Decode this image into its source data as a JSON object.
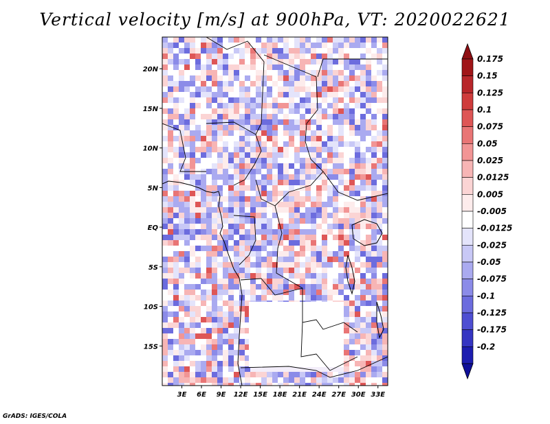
{
  "title": "Vertical velocity [m/s] at 900hPa, VT: 2020022621",
  "credit": "GrADS: IGES/COLA",
  "map": {
    "lon_range": [
      0,
      34.5
    ],
    "lat_range": [
      -20,
      24
    ],
    "lon_ticks": [
      {
        "value": 3,
        "label": "3E"
      },
      {
        "value": 6,
        "label": "6E"
      },
      {
        "value": 9,
        "label": "9E"
      },
      {
        "value": 12,
        "label": "12E"
      },
      {
        "value": 15,
        "label": "15E"
      },
      {
        "value": 18,
        "label": "18E"
      },
      {
        "value": 21,
        "label": "21E"
      },
      {
        "value": 24,
        "label": "24E"
      },
      {
        "value": 27,
        "label": "27E"
      },
      {
        "value": 30,
        "label": "30E"
      },
      {
        "value": 33,
        "label": "33E"
      }
    ],
    "lat_ticks": [
      {
        "value": 20,
        "label": "20N"
      },
      {
        "value": 15,
        "label": "15N"
      },
      {
        "value": 10,
        "label": "10N"
      },
      {
        "value": 5,
        "label": "5N"
      },
      {
        "value": 0,
        "label": "EQ"
      },
      {
        "value": -5,
        "label": "5S"
      },
      {
        "value": -10,
        "label": "10S"
      },
      {
        "value": -15,
        "label": "15S"
      }
    ]
  },
  "colorbar": {
    "levels": [
      {
        "label": "0.175",
        "color": "#a01518"
      },
      {
        "label": "0.15",
        "color": "#b8262a"
      },
      {
        "label": "0.125",
        "color": "#cf3c3c"
      },
      {
        "label": "0.1",
        "color": "#de5656"
      },
      {
        "label": "0.075",
        "color": "#e97575"
      },
      {
        "label": "0.05",
        "color": "#f29595"
      },
      {
        "label": "0.025",
        "color": "#f7b5b5"
      },
      {
        "label": "0.0125",
        "color": "#fbd4d4"
      },
      {
        "label": "0.005",
        "color": "#fdecec"
      },
      {
        "label": "-0.005",
        "color": "#ffffff"
      },
      {
        "label": "-0.0125",
        "color": "#e4e4fb"
      },
      {
        "label": "-0.025",
        "color": "#c8c8f6"
      },
      {
        "label": "-0.05",
        "color": "#aaaaf0"
      },
      {
        "label": "-0.075",
        "color": "#8b8be8"
      },
      {
        "label": "-0.1",
        "color": "#6c6cde"
      },
      {
        "label": "-0.125",
        "color": "#4e4ed2"
      },
      {
        "label": "-0.175",
        "color": "#3535c2"
      },
      {
        "label": "-0.2",
        "color": "#1d1db0"
      }
    ],
    "top_color": "#8e0e12",
    "bottom_color": "#0f0f99"
  }
}
